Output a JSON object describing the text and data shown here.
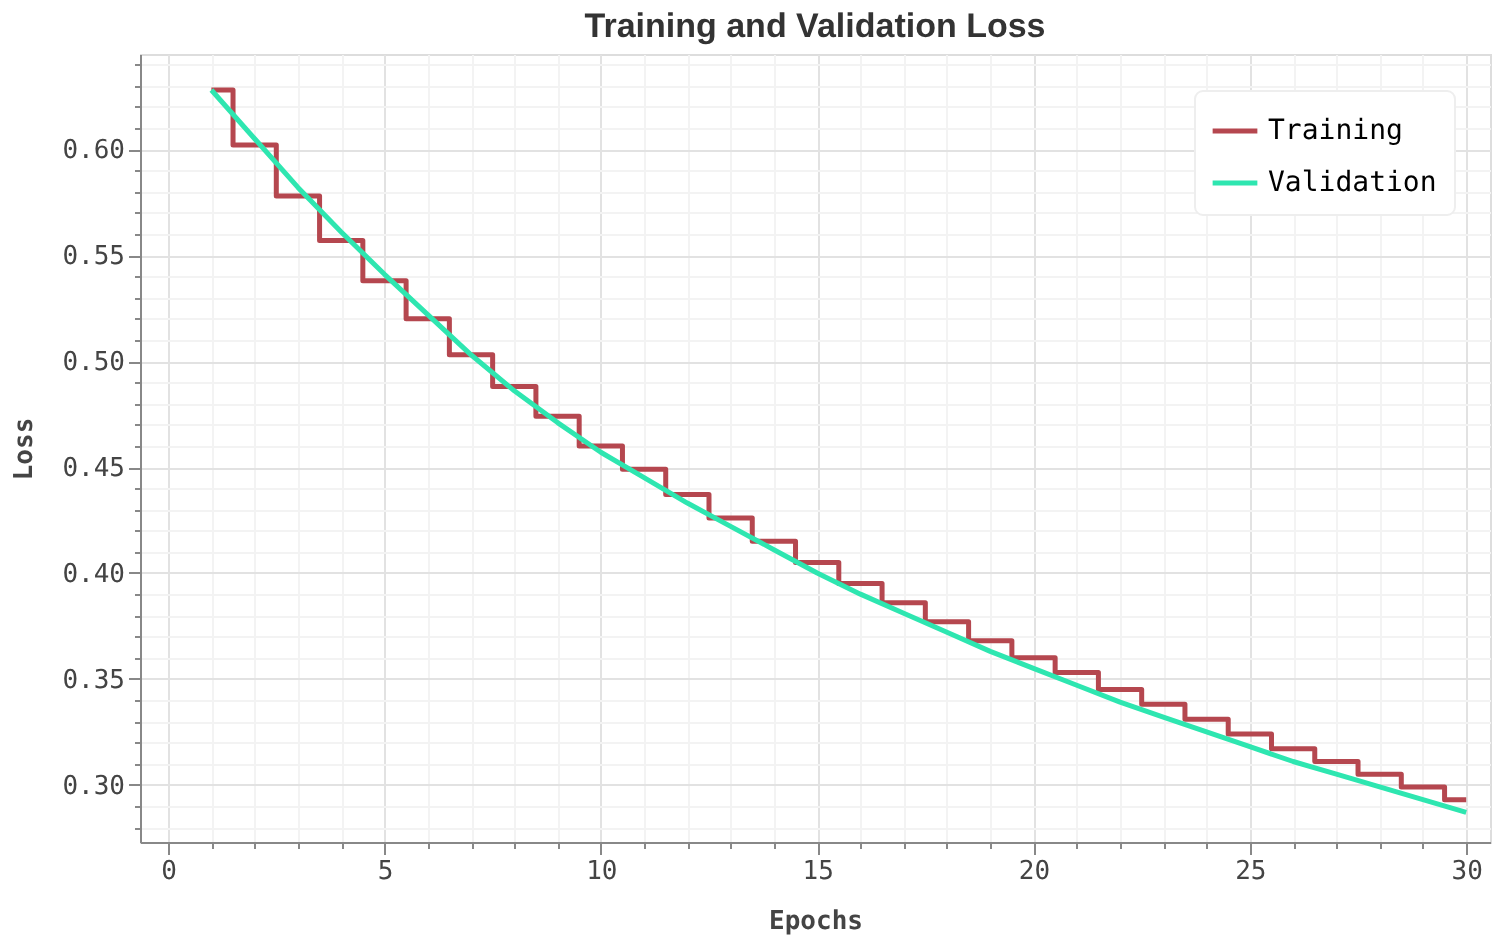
{
  "chart_data": {
    "type": "line",
    "title": "Training and Validation Loss",
    "xlabel": "Epochs",
    "ylabel": "Loss",
    "x": [
      1,
      2,
      3,
      4,
      5,
      6,
      7,
      8,
      9,
      10,
      11,
      12,
      13,
      14,
      15,
      16,
      17,
      18,
      19,
      20,
      21,
      22,
      23,
      24,
      25,
      26,
      27,
      28,
      29,
      30
    ],
    "series": [
      {
        "name": "Training",
        "type": "step",
        "color": "#b5474f",
        "values": [
          0.628,
          0.602,
          0.578,
          0.557,
          0.538,
          0.52,
          0.503,
          0.488,
          0.474,
          0.46,
          0.449,
          0.437,
          0.426,
          0.415,
          0.405,
          0.395,
          0.386,
          0.377,
          0.368,
          0.36,
          0.353,
          0.345,
          0.338,
          0.331,
          0.324,
          0.317,
          0.311,
          0.305,
          0.299,
          0.293
        ]
      },
      {
        "name": "Validation",
        "type": "line",
        "color": "#2ee6b0",
        "values": [
          0.628,
          0.605,
          0.582,
          0.561,
          0.541,
          0.522,
          0.503,
          0.486,
          0.471,
          0.457,
          0.445,
          0.433,
          0.422,
          0.411,
          0.4,
          0.39,
          0.381,
          0.372,
          0.363,
          0.355,
          0.347,
          0.339,
          0.332,
          0.325,
          0.318,
          0.311,
          0.305,
          0.299,
          0.293,
          0.287
        ]
      }
    ],
    "xlim": [
      -0.65,
      30.55
    ],
    "ylim": [
      0.273,
      0.645
    ],
    "xticks": [
      0,
      {
        "value": 1,
        "label": null
      },
      {
        "value": 2,
        "label": null
      },
      {
        "value": 3,
        "label": null
      },
      {
        "value": 4,
        "label": null
      },
      5,
      {
        "value": 6,
        "label": null
      },
      {
        "value": 7,
        "label": null
      },
      {
        "value": 8,
        "label": null
      },
      {
        "value": 9,
        "label": null
      },
      10,
      {
        "value": 11,
        "label": null
      },
      {
        "value": 12,
        "label": null
      },
      {
        "value": 13,
        "label": null
      },
      {
        "value": 14,
        "label": null
      },
      15,
      {
        "value": 16,
        "label": null
      },
      {
        "value": 17,
        "label": null
      },
      {
        "value": 18,
        "label": null
      },
      {
        "value": 19,
        "label": null
      },
      20,
      {
        "value": 21,
        "label": null
      },
      {
        "value": 22,
        "label": null
      },
      {
        "value": 23,
        "label": null
      },
      {
        "value": 24,
        "label": null
      },
      25,
      {
        "value": 26,
        "label": null
      },
      {
        "value": 27,
        "label": null
      },
      {
        "value": 28,
        "label": null
      },
      {
        "value": 29,
        "label": null
      },
      30
    ],
    "yticks": [
      {
        "value": 0.28,
        "label": null
      },
      {
        "value": 0.29,
        "label": null
      },
      {
        "value": 0.3,
        "label": "0.30"
      },
      {
        "value": 0.31,
        "label": null
      },
      {
        "value": 0.32,
        "label": null
      },
      {
        "value": 0.33,
        "label": null
      },
      {
        "value": 0.34,
        "label": null
      },
      {
        "value": 0.35,
        "label": "0.35"
      },
      {
        "value": 0.36,
        "label": null
      },
      {
        "value": 0.37,
        "label": null
      },
      {
        "value": 0.38,
        "label": null
      },
      {
        "value": 0.39,
        "label": null
      },
      {
        "value": 0.4,
        "label": "0.40"
      },
      {
        "value": 0.41,
        "label": null
      },
      {
        "value": 0.42,
        "label": null
      },
      {
        "value": 0.43,
        "label": null
      },
      {
        "value": 0.44,
        "label": null
      },
      {
        "value": 0.45,
        "label": "0.45"
      },
      {
        "value": 0.46,
        "label": null
      },
      {
        "value": 0.47,
        "label": null
      },
      {
        "value": 0.48,
        "label": null
      },
      {
        "value": 0.49,
        "label": null
      },
      {
        "value": 0.5,
        "label": "0.50"
      },
      {
        "value": 0.51,
        "label": null
      },
      {
        "value": 0.52,
        "label": null
      },
      {
        "value": 0.53,
        "label": null
      },
      {
        "value": 0.54,
        "label": null
      },
      {
        "value": 0.55,
        "label": "0.55"
      },
      {
        "value": 0.56,
        "label": null
      },
      {
        "value": 0.57,
        "label": null
      },
      {
        "value": 0.58,
        "label": null
      },
      {
        "value": 0.59,
        "label": null
      },
      {
        "value": 0.6,
        "label": "0.60"
      },
      {
        "value": 0.61,
        "label": null
      },
      {
        "value": 0.62,
        "label": null
      },
      {
        "value": 0.63,
        "label": null
      },
      {
        "value": 0.64,
        "label": null
      }
    ],
    "grid": true,
    "legend": "top right",
    "line_style": "solid",
    "marker": "none"
  }
}
